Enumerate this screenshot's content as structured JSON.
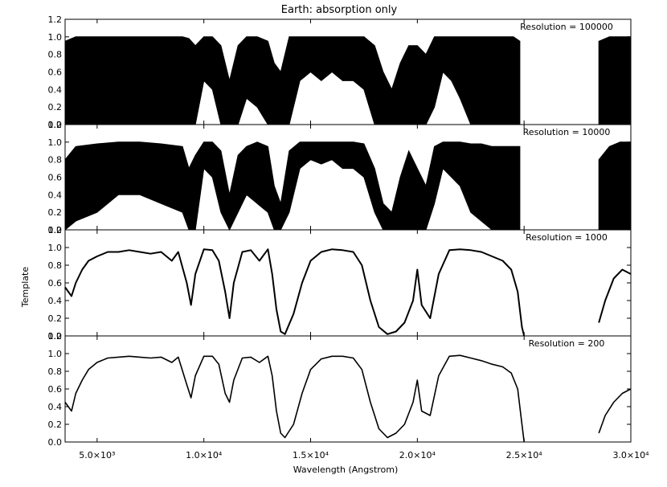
{
  "chart_data": {
    "type": "line",
    "title": "Earth: absorption only",
    "xlabel": "Wavelength (Angstrom)",
    "ylabel": "Template",
    "xlim": [
      3500,
      30000
    ],
    "ylim": [
      0.0,
      1.2
    ],
    "grid": false,
    "x_tick_values": [
      5000,
      10000,
      15000,
      20000,
      25000,
      30000
    ],
    "x_tick_labels": [
      "5.0×10³",
      "1.0×10⁴",
      "1.5×10⁴",
      "2.0×10⁴",
      "2.5×10⁴",
      "3.0×10⁴"
    ],
    "y_tick_values": [
      0.0,
      0.2,
      0.4,
      0.6,
      0.8,
      1.0,
      1.2
    ],
    "y_tick_labels": [
      "0.0",
      "0.2",
      "0.4",
      "0.6",
      "0.8",
      "1.0",
      "1.2"
    ],
    "panels": [
      {
        "label": "Resolution = 100000",
        "series": [
          {
            "x": [
              3500,
              4000,
              5000,
              6000,
              7000,
              8000,
              9000,
              9300,
              9600,
              10000,
              10400,
              10800,
              11200,
              11600,
              12000,
              12500,
              13000,
              13300,
              13600,
              14000,
              14500,
              15000,
              15500,
              16000,
              16500,
              17000,
              17500,
              18000,
              18400,
              18800,
              19200,
              19600,
              20000,
              20400,
              20800,
              21200,
              21600,
              22000,
              22500,
              23000,
              23500,
              24000,
              24500,
              24800,
              28500,
              29000,
              29500,
              30000
            ],
            "y_top": [
              0.95,
              1.0,
              1.0,
              1.0,
              1.0,
              1.0,
              1.0,
              0.98,
              0.9,
              1.0,
              1.0,
              0.9,
              0.5,
              0.9,
              1.0,
              1.0,
              0.95,
              0.7,
              0.6,
              1.0,
              1.0,
              1.0,
              1.0,
              1.0,
              1.0,
              1.0,
              1.0,
              0.9,
              0.6,
              0.4,
              0.7,
              0.9,
              0.9,
              0.8,
              1.0,
              1.0,
              1.0,
              1.0,
              1.0,
              1.0,
              1.0,
              1.0,
              1.0,
              0.95,
              0.95,
              1.0,
              1.0,
              1.0
            ],
            "y_bottom": [
              0.0,
              0.0,
              0.0,
              0.0,
              0.0,
              0.0,
              0.0,
              0.0,
              0.0,
              0.5,
              0.4,
              0.0,
              0.0,
              0.0,
              0.3,
              0.2,
              0.0,
              0.0,
              0.0,
              0.0,
              0.5,
              0.6,
              0.5,
              0.6,
              0.5,
              0.5,
              0.4,
              0.0,
              0.0,
              0.0,
              0.0,
              0.0,
              0.0,
              0.0,
              0.2,
              0.6,
              0.5,
              0.3,
              0.0,
              0.0,
              0.0,
              0.0,
              0.0,
              0.0,
              0.0,
              0.0,
              0.0,
              0.0
            ]
          }
        ]
      },
      {
        "label": "Resolution = 10000",
        "series": [
          {
            "x": [
              3500,
              4000,
              5000,
              6000,
              7000,
              8000,
              9000,
              9300,
              9600,
              10000,
              10400,
              10800,
              11200,
              11600,
              12000,
              12500,
              13000,
              13300,
              13600,
              14000,
              14500,
              15000,
              15500,
              16000,
              16500,
              17000,
              17500,
              18000,
              18400,
              18800,
              19200,
              19600,
              20000,
              20400,
              20800,
              21200,
              21600,
              22000,
              22500,
              23000,
              23500,
              24000,
              24500,
              24800,
              28500,
              29000,
              29500,
              30000
            ],
            "y_top": [
              0.8,
              0.95,
              0.98,
              1.0,
              1.0,
              0.98,
              0.95,
              0.7,
              0.85,
              1.0,
              1.0,
              0.9,
              0.4,
              0.85,
              0.95,
              1.0,
              0.95,
              0.5,
              0.3,
              0.9,
              1.0,
              1.0,
              1.0,
              1.0,
              1.0,
              1.0,
              0.98,
              0.7,
              0.3,
              0.2,
              0.6,
              0.9,
              0.7,
              0.5,
              0.95,
              1.0,
              1.0,
              1.0,
              0.98,
              0.98,
              0.95,
              0.95,
              0.95,
              0.95,
              0.8,
              0.95,
              1.0,
              1.0
            ],
            "y_bottom": [
              0.0,
              0.1,
              0.2,
              0.4,
              0.4,
              0.3,
              0.2,
              0.0,
              0.0,
              0.7,
              0.6,
              0.2,
              0.0,
              0.2,
              0.4,
              0.3,
              0.2,
              0.0,
              0.0,
              0.2,
              0.7,
              0.8,
              0.75,
              0.8,
              0.7,
              0.7,
              0.6,
              0.2,
              0.0,
              0.0,
              0.0,
              0.0,
              0.0,
              0.0,
              0.3,
              0.7,
              0.6,
              0.5,
              0.2,
              0.1,
              0.0,
              0.0,
              0.0,
              0.0,
              0.0,
              0.0,
              0.0,
              0.0
            ]
          }
        ]
      },
      {
        "label": "Resolution = 1000",
        "series": [
          {
            "x": [
              3500,
              3800,
              4000,
              4300,
              4600,
              5000,
              5500,
              6000,
              6500,
              7000,
              7500,
              8000,
              8500,
              8800,
              9200,
              9400,
              9600,
              10000,
              10400,
              10700,
              11000,
              11200,
              11400,
              11800,
              12200,
              12600,
              13000,
              13200,
              13400,
              13600,
              13800,
              14200,
              14600,
              15000,
              15500,
              16000,
              16500,
              17000,
              17400,
              17800,
              18200,
              18600,
              19000,
              19400,
              19800,
              20000,
              20200,
              20600,
              21000,
              21500,
              22000,
              22500,
              23000,
              23500,
              24000,
              24400,
              24700,
              24900,
              25000,
              28500,
              28800,
              29200,
              29600,
              30000
            ],
            "y": [
              0.55,
              0.45,
              0.6,
              0.75,
              0.85,
              0.9,
              0.95,
              0.95,
              0.97,
              0.95,
              0.93,
              0.95,
              0.85,
              0.95,
              0.6,
              0.35,
              0.7,
              0.98,
              0.97,
              0.85,
              0.5,
              0.2,
              0.6,
              0.95,
              0.97,
              0.85,
              0.98,
              0.7,
              0.3,
              0.05,
              0.02,
              0.25,
              0.6,
              0.85,
              0.95,
              0.98,
              0.97,
              0.95,
              0.8,
              0.4,
              0.1,
              0.02,
              0.05,
              0.15,
              0.4,
              0.75,
              0.35,
              0.2,
              0.7,
              0.97,
              0.98,
              0.97,
              0.95,
              0.9,
              0.85,
              0.75,
              0.5,
              0.1,
              0.0,
              0.15,
              0.4,
              0.65,
              0.75,
              0.7
            ]
          }
        ]
      },
      {
        "label": "Resolution = 200",
        "series": [
          {
            "x": [
              3500,
              3800,
              4000,
              4300,
              4600,
              5000,
              5500,
              6000,
              6500,
              7000,
              7500,
              8000,
              8500,
              8800,
              9200,
              9400,
              9600,
              10000,
              10400,
              10700,
              11000,
              11200,
              11400,
              11800,
              12200,
              12600,
              13000,
              13200,
              13400,
              13600,
              13800,
              14200,
              14600,
              15000,
              15500,
              16000,
              16500,
              17000,
              17400,
              17800,
              18200,
              18600,
              19000,
              19400,
              19800,
              20000,
              20200,
              20600,
              21000,
              21500,
              22000,
              22500,
              23000,
              23500,
              24000,
              24400,
              24700,
              24900,
              25000,
              28500,
              28800,
              29200,
              29600,
              30000
            ],
            "y": [
              0.45,
              0.35,
              0.55,
              0.7,
              0.82,
              0.9,
              0.95,
              0.96,
              0.97,
              0.96,
              0.95,
              0.96,
              0.9,
              0.96,
              0.65,
              0.5,
              0.75,
              0.97,
              0.97,
              0.88,
              0.55,
              0.45,
              0.7,
              0.95,
              0.96,
              0.9,
              0.97,
              0.75,
              0.35,
              0.1,
              0.05,
              0.2,
              0.55,
              0.82,
              0.94,
              0.97,
              0.97,
              0.95,
              0.82,
              0.45,
              0.15,
              0.05,
              0.1,
              0.2,
              0.45,
              0.7,
              0.35,
              0.3,
              0.75,
              0.97,
              0.98,
              0.95,
              0.92,
              0.88,
              0.85,
              0.78,
              0.6,
              0.2,
              0.0,
              0.1,
              0.3,
              0.45,
              0.55,
              0.6
            ]
          }
        ]
      }
    ]
  }
}
